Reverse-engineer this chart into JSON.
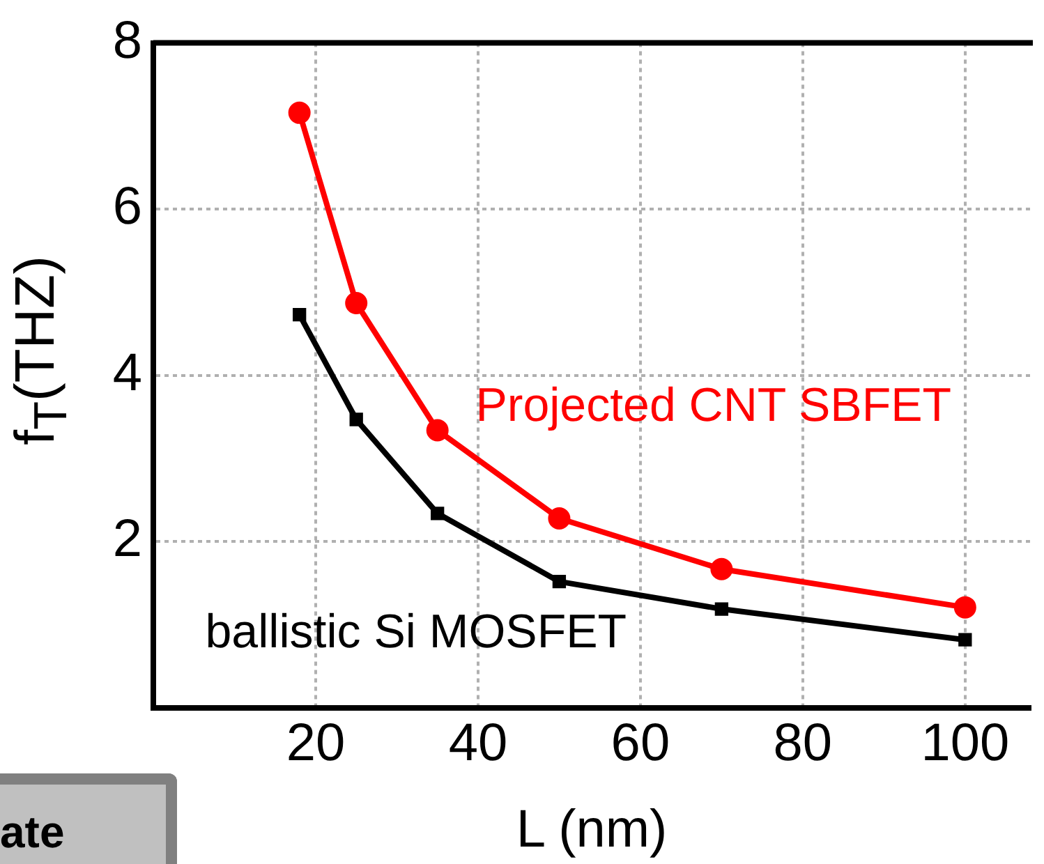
{
  "chart_data": {
    "type": "line",
    "xlabel": "L (nm)",
    "ylabel": "f$_{T}$(THZ)",
    "x": [
      18,
      25,
      35,
      50,
      70,
      100
    ],
    "series": [
      {
        "name": "Projected CNT SBFET",
        "color": "#ff0000",
        "marker": "circle",
        "values": [
          7.16,
          4.87,
          3.34,
          2.28,
          1.67,
          1.21
        ]
      },
      {
        "name": "ballistic Si MOSFET",
        "color": "#000000",
        "marker": "square",
        "values": [
          4.73,
          3.47,
          2.34,
          1.52,
          1.19,
          0.82
        ]
      }
    ],
    "xlim": [
      0,
      108
    ],
    "xticks": [
      20,
      40,
      60,
      80,
      100
    ],
    "ylim": [
      0,
      8
    ],
    "yticks": [
      2,
      4,
      6,
      8
    ],
    "grid": true,
    "legend": false,
    "line_style": "solid",
    "annotations": [
      "ate"
    ]
  }
}
